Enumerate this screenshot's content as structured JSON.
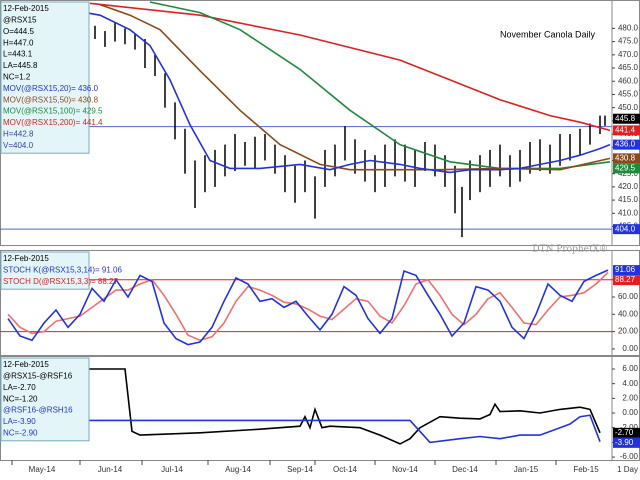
{
  "chart_data": [
    {
      "type": "ohlc",
      "title": "November Canola Daily",
      "watermark": "DTN ProphetX®",
      "xlim": [
        0,
        612
      ],
      "ylim": [
        398,
        490
      ],
      "yticks": [
        {
          "value": 405,
          "label": "405.0"
        },
        {
          "value": 410,
          "label": "410.0"
        },
        {
          "value": 415,
          "label": "415.0"
        },
        {
          "value": 420,
          "label": "420.0"
        },
        {
          "value": 425,
          "label": "425.0"
        },
        {
          "value": 430,
          "label": "430.0"
        },
        {
          "value": 435,
          "label": "435.0"
        },
        {
          "value": 440,
          "label": "440.0"
        },
        {
          "value": 445,
          "label": "445.0"
        },
        {
          "value": 450,
          "label": "450.0"
        },
        {
          "value": 455,
          "label": "455.0"
        },
        {
          "value": 460,
          "label": "460.0"
        },
        {
          "value": 465,
          "label": "465.0"
        },
        {
          "value": 470,
          "label": "470.0"
        },
        {
          "value": 475,
          "label": "475.0"
        },
        {
          "value": 480,
          "label": "480.0"
        }
      ],
      "info": [
        {
          "text": "12-Feb-2015",
          "color": "#000000"
        },
        {
          "text": "@RSX15",
          "color": "#000000"
        },
        {
          "text": "O=444.5",
          "color": "#000000"
        },
        {
          "text": "H=447.0",
          "color": "#000000"
        },
        {
          "text": "L=443.1",
          "color": "#000000"
        },
        {
          "text": "LA=445.8",
          "color": "#000000"
        },
        {
          "text": "NC=1.2",
          "color": "#000000"
        },
        {
          "text": "MOV(@RSX15,20)= 436.0",
          "color": "#2233dd"
        },
        {
          "text": "MOV(@RSX15,50)= 430.8",
          "color": "#8b4a1c"
        },
        {
          "text": "MOV(@RSX15,100)= 429.5",
          "color": "#1f8a3c"
        },
        {
          "text": "MOV(@RSX15,200)= 441.4",
          "color": "#e02020"
        },
        {
          "text": "H=442.8",
          "color": "#3344aa"
        },
        {
          "text": "V=404.0",
          "color": "#3344aa"
        }
      ],
      "price": {
        "color": "#000000",
        "x": [
          85,
          95,
          105,
          115,
          125,
          135,
          145,
          155,
          165,
          175,
          185,
          195,
          205,
          215,
          225,
          235,
          245,
          255,
          265,
          275,
          285,
          295,
          305,
          315,
          325,
          335,
          345,
          355,
          365,
          375,
          385,
          395,
          405,
          415,
          425,
          435,
          445,
          455,
          462,
          470,
          480,
          490,
          500,
          510,
          520,
          530,
          540,
          550,
          560,
          570,
          580,
          590,
          600,
          605
        ],
        "high": [
          480,
          481,
          479,
          482,
          480,
          478,
          476,
          470,
          463,
          452,
          442,
          430,
          432,
          434,
          436,
          440,
          437,
          439,
          440,
          436,
          432,
          428,
          430,
          424,
          434,
          436,
          443,
          438,
          434,
          432,
          436,
          438,
          436,
          434,
          437,
          436,
          432,
          428,
          420,
          430,
          432,
          434,
          436,
          432,
          434,
          437,
          438,
          436,
          440,
          440,
          442,
          444,
          447,
          447.0
        ],
        "low": [
          474,
          476,
          473,
          475,
          474,
          472,
          465,
          462,
          450,
          438,
          425,
          412,
          418,
          420,
          424,
          426,
          428,
          427,
          430,
          425,
          418,
          414,
          418,
          408,
          420,
          424,
          430,
          425,
          422,
          418,
          420,
          424,
          422,
          420,
          426,
          424,
          420,
          410,
          401,
          415,
          418,
          420,
          424,
          420,
          422,
          425,
          426,
          425,
          428,
          430,
          432,
          436,
          440,
          443.1
        ]
      },
      "series": [
        {
          "color": "#e02020",
          "x": [
            90,
            200,
            300,
            400,
            450,
            500,
            550,
            580,
            610
          ],
          "values": [
            489.5,
            485,
            477.5,
            468,
            460.5,
            453,
            447,
            444.5,
            441.4
          ]
        },
        {
          "color": "#1f8a3c",
          "x": [
            150,
            200,
            240,
            300,
            350,
            400,
            450,
            500,
            560,
            610
          ],
          "values": [
            490,
            486,
            479.5,
            464.5,
            449,
            436,
            429.5,
            427,
            427,
            429.5
          ]
        },
        {
          "color": "#8b4a1c",
          "x": [
            100,
            130,
            160,
            200,
            240,
            280,
            320,
            350,
            380,
            440,
            500,
            560,
            610
          ],
          "values": [
            489,
            485,
            479.5,
            464,
            449,
            436,
            428.5,
            426.5,
            426.5,
            426.5,
            427,
            426.5,
            430.8
          ]
        },
        {
          "color": "#2233dd",
          "x": [
            70,
            100,
            130,
            150,
            170,
            190,
            210,
            230,
            260,
            300,
            330,
            350,
            370,
            400,
            420,
            450,
            470,
            500,
            520,
            540,
            560,
            580,
            600,
            610
          ],
          "values": [
            487,
            485,
            479.5,
            473.5,
            460.5,
            443.5,
            430,
            427,
            427,
            428.5,
            426.5,
            428.5,
            430,
            428.5,
            427,
            425.5,
            426.5,
            426.5,
            427,
            428.5,
            430,
            432,
            434.5,
            436.0
          ]
        }
      ],
      "hlines": [
        {
          "value": 442.8,
          "color": "#5566cc"
        },
        {
          "value": 404.0,
          "color": "#5566cc"
        }
      ],
      "markers": [
        {
          "value": 445.8,
          "color": "#000000"
        },
        {
          "value": 441.4,
          "color": "#e02020"
        },
        {
          "value": 436,
          "label": "436.0",
          "color": "#2233dd"
        },
        {
          "value": 430.8,
          "color": "#8b4a1c"
        },
        {
          "value": 429.5,
          "color": "#1f8a3c"
        },
        {
          "value": 404,
          "label": "404.0",
          "color": "#2233dd"
        }
      ]
    },
    {
      "type": "line",
      "xlim": [
        0,
        612
      ],
      "ylim": [
        -7,
        112
      ],
      "yticks": [
        {
          "value": 0,
          "label": "0.00"
        },
        {
          "value": 20,
          "label": "20.00"
        },
        {
          "value": 40,
          "label": "40.00"
        },
        {
          "value": 60,
          "label": "60.00"
        },
        {
          "value": 80,
          "label": "80.00"
        }
      ],
      "info": [
        {
          "text": "12-Feb-2015",
          "color": "#000000"
        },
        {
          "text": "STOCH K(@RSX15,3,14)= 91.06",
          "color": "#2233dd"
        },
        {
          "text": "STOCH D(@RSX15,3,3)= 88.27",
          "color": "#e02020"
        }
      ],
      "hlines": [
        {
          "value": 80,
          "color": "#e02020"
        },
        {
          "value": 20,
          "color": "#e02020"
        }
      ],
      "series": [
        {
          "color": "#f07070",
          "x": [
            8,
            20,
            32,
            44,
            56,
            68,
            80,
            92,
            104,
            116,
            128,
            140,
            152,
            164,
            176,
            188,
            200,
            212,
            224,
            236,
            248,
            260,
            272,
            284,
            296,
            308,
            320,
            332,
            344,
            356,
            368,
            380,
            392,
            404,
            416,
            428,
            440,
            452,
            464,
            476,
            488,
            500,
            512,
            524,
            536,
            548,
            560,
            572,
            584,
            596,
            608
          ],
          "values": [
            40,
            25,
            18,
            20,
            32,
            35,
            38,
            48,
            58,
            68,
            68,
            75,
            80,
            62,
            40,
            16,
            10,
            14,
            30,
            55,
            72,
            68,
            62,
            54,
            52,
            46,
            38,
            34,
            46,
            58,
            55,
            38,
            30,
            50,
            75,
            80,
            62,
            40,
            28,
            40,
            58,
            65,
            48,
            30,
            28,
            45,
            60,
            62,
            65,
            75,
            88.27
          ]
        },
        {
          "color": "#2233dd",
          "x": [
            8,
            20,
            32,
            44,
            56,
            68,
            80,
            92,
            104,
            116,
            128,
            140,
            152,
            164,
            176,
            188,
            200,
            212,
            224,
            236,
            248,
            260,
            272,
            284,
            296,
            308,
            320,
            332,
            344,
            356,
            368,
            380,
            392,
            404,
            416,
            428,
            440,
            452,
            464,
            476,
            488,
            500,
            512,
            524,
            536,
            548,
            560,
            572,
            584,
            596,
            608
          ],
          "values": [
            35,
            15,
            10,
            30,
            45,
            25,
            40,
            70,
            55,
            80,
            60,
            85,
            78,
            30,
            12,
            5,
            8,
            25,
            55,
            82,
            75,
            55,
            58,
            48,
            55,
            38,
            22,
            40,
            72,
            62,
            35,
            18,
            35,
            90,
            85,
            62,
            40,
            15,
            30,
            72,
            68,
            55,
            25,
            12,
            40,
            75,
            62,
            55,
            78,
            85,
            91.06
          ]
        }
      ],
      "markers": [
        {
          "value": 91.06,
          "color": "#2233dd"
        },
        {
          "value": 88.27,
          "color": "#e02020"
        }
      ]
    },
    {
      "type": "line",
      "xlim": [
        0,
        612
      ],
      "ylim": [
        -6.4,
        7.5
      ],
      "xlabel": "1 Day",
      "yticks": [
        {
          "value": -6,
          "label": "-6.00"
        },
        {
          "value": -4,
          "label": "-4.00"
        },
        {
          "value": -2,
          "label": "-2.00"
        },
        {
          "value": 0,
          "label": "0.00"
        },
        {
          "value": 2,
          "label": "2.00"
        },
        {
          "value": 4,
          "label": "4.00"
        },
        {
          "value": 6,
          "label": "6.00"
        }
      ],
      "xticks": [
        {
          "value": 42,
          "label": "May-14"
        },
        {
          "value": 110,
          "label": "Jun-14"
        },
        {
          "value": 172,
          "label": "Jul-14"
        },
        {
          "value": 238,
          "label": "Aug-14"
        },
        {
          "value": 300,
          "label": "Sep-14"
        },
        {
          "value": 345,
          "label": "Oct-14"
        },
        {
          "value": 405,
          "label": "Nov-14"
        },
        {
          "value": 465,
          "label": "Dec-14"
        },
        {
          "value": 526,
          "label": "Jan-15"
        },
        {
          "value": 586,
          "label": "Feb-15"
        }
      ],
      "info": [
        {
          "text": "12-Feb-2015",
          "color": "#000000"
        },
        {
          "text": "@RSX15-@RSF16",
          "color": "#000000"
        },
        {
          "text": "LA=-2.70",
          "color": "#000000"
        },
        {
          "text": "NC=-1.20",
          "color": "#000000"
        },
        {
          "text": "@RSF16-@RSH16",
          "color": "#2233dd"
        },
        {
          "text": "LA=-3.90",
          "color": "#2233dd"
        },
        {
          "text": "NC=-2.90",
          "color": "#2233dd"
        }
      ],
      "series": [
        {
          "color": "#000000",
          "x": [
            5,
            125,
            132,
            140,
            200,
            260,
            300,
            305,
            310,
            315,
            322,
            330,
            360,
            380,
            400,
            410,
            420,
            440,
            460,
            480,
            490,
            495,
            500,
            520,
            540,
            560,
            580,
            590,
            600
          ],
          "values": [
            6,
            6,
            -2.5,
            -3.0,
            -2.7,
            -2.2,
            -1.8,
            -0.5,
            -2.0,
            0.5,
            -2.0,
            -1.8,
            -2.0,
            -3.0,
            -4.2,
            -3.5,
            -2.0,
            -0.5,
            -0.7,
            -0.8,
            -0.2,
            1.2,
            0.2,
            0.3,
            0.0,
            0.5,
            0.8,
            0.5,
            -2.7
          ]
        },
        {
          "color": "#2233dd",
          "x": [
            5,
            60,
            65,
            130,
            260,
            410,
            420,
            430,
            460,
            480,
            500,
            520,
            540,
            560,
            570,
            580,
            590,
            600
          ],
          "values": [
            -1.2,
            -1.2,
            -1.0,
            -1.0,
            -1.0,
            -1.0,
            -2.5,
            -4.0,
            -3.5,
            -3.2,
            -3.5,
            -3.0,
            -3.0,
            -2.0,
            -1.5,
            -0.5,
            -0.3,
            -3.9
          ]
        }
      ],
      "markers": [
        {
          "value": -2.7,
          "label": "-2.70",
          "color": "#000000"
        },
        {
          "value": -3.9,
          "label": "-3.90",
          "color": "#2233dd"
        }
      ]
    }
  ]
}
